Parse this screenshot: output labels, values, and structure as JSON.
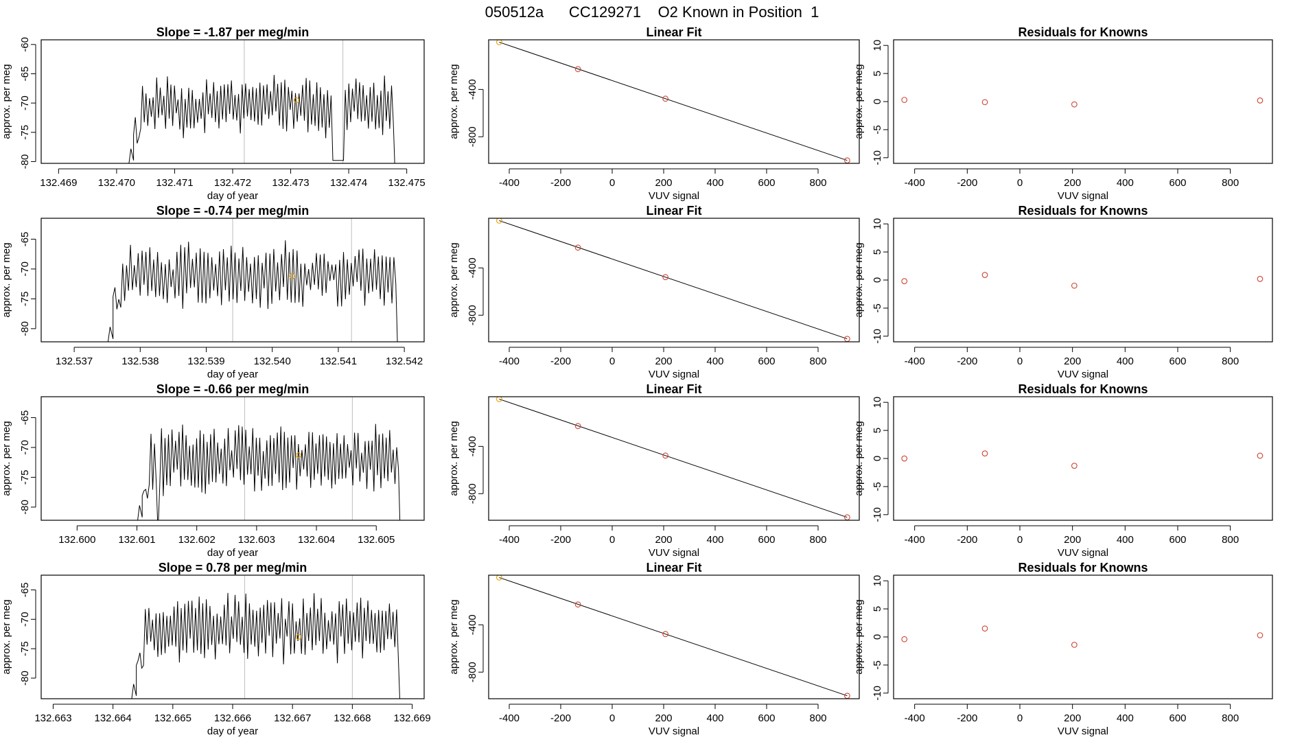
{
  "main_title": "050512a      CC129271    O2 Known in Position  1",
  "chart_data": [
    {
      "type": "line",
      "row": 1,
      "title": "Slope =  -1.87  per meg/min",
      "xlabel": "day of year",
      "ylabel": "approx. per meg",
      "xlim": [
        132.4687,
        132.4753
      ],
      "ylim": [
        -80.3,
        -59.2
      ],
      "xticks": [
        132.469,
        132.47,
        132.471,
        132.472,
        132.473,
        132.474,
        132.475
      ],
      "xtick_labels": [
        "132.469",
        "132.470",
        "132.471",
        "132.472",
        "132.473",
        "132.474",
        "132.475"
      ],
      "yticks": [
        -80,
        -75,
        -70,
        -65,
        -60
      ],
      "ytick_labels": [
        "-80",
        "-75",
        "-70",
        "-65",
        "-60"
      ],
      "start": 132.4702,
      "end": 132.4748,
      "vlines": [
        132.4722,
        132.4739
      ],
      "gap": [
        132.47372,
        132.47392
      ],
      "mean_point": {
        "x": 132.4731,
        "y": -69.5
      },
      "mean_color": "#e69f00",
      "seed": 11,
      "base": -70.5,
      "amp": 3.2,
      "low_dip": 0
    },
    {
      "type": "line",
      "row": 2,
      "title": "Slope =  -0.74  per meg/min",
      "xlabel": "day of year",
      "ylabel": "approx. per meg",
      "xlim": [
        132.5365,
        132.5423
      ],
      "ylim": [
        -82.2,
        -61.5
      ],
      "xticks": [
        132.537,
        132.538,
        132.539,
        132.54,
        132.541,
        132.542
      ],
      "xtick_labels": [
        "132.537",
        "132.538",
        "132.539",
        "132.540",
        "132.541",
        "132.542"
      ],
      "yticks": [
        -80,
        -75,
        -70,
        -65
      ],
      "ytick_labels": [
        "-80",
        "-75",
        "-70",
        "-65"
      ],
      "start": 132.5375,
      "end": 132.5419,
      "vlines": [
        132.5394,
        132.5412
      ],
      "gap": [],
      "mean_point": {
        "x": 132.5403,
        "y": -71.2
      },
      "mean_color": "#e69f00",
      "seed": 23,
      "base": -71,
      "amp": 3.3,
      "low_dip": 0
    },
    {
      "type": "line",
      "row": 3,
      "title": "Slope =  -0.66  per meg/min",
      "xlabel": "day of year",
      "ylabel": "approx. per meg",
      "xlim": [
        132.5994,
        132.6058
      ],
      "ylim": [
        -82.2,
        -61.5
      ],
      "xticks": [
        132.6,
        132.601,
        132.602,
        132.603,
        132.604,
        132.605
      ],
      "xtick_labels": [
        "132.600",
        "132.601",
        "132.602",
        "132.603",
        "132.604",
        "132.605"
      ],
      "yticks": [
        -80,
        -75,
        -70,
        -65
      ],
      "ytick_labels": [
        "-80",
        "-75",
        "-70",
        "-65"
      ],
      "start": 132.601,
      "end": 132.6054,
      "vlines": [
        132.6028,
        132.6046
      ],
      "gap": [],
      "mean_point": {
        "x": 132.6037,
        "y": -71.3
      },
      "mean_color": "#e69f00",
      "seed": 37,
      "base": -72,
      "amp": 3.6,
      "low_dip": 1
    },
    {
      "type": "line",
      "row": 4,
      "title": "Slope =  0.78  per meg/min",
      "xlabel": "day of year",
      "ylabel": "approx. per meg",
      "xlim": [
        132.6628,
        132.6692
      ],
      "ylim": [
        -83.5,
        -62.5
      ],
      "xticks": [
        132.663,
        132.664,
        132.665,
        132.666,
        132.667,
        132.668,
        132.669
      ],
      "xtick_labels": [
        "132.663",
        "132.664",
        "132.665",
        "132.666",
        "132.667",
        "132.668",
        "132.669"
      ],
      "yticks": [
        -80,
        -75,
        -70,
        -65
      ],
      "ytick_labels": [
        "-80",
        "-75",
        "-70",
        "-65"
      ],
      "start": 132.6643,
      "end": 132.6688,
      "vlines": [
        132.6662,
        132.668
      ],
      "gap": [],
      "mean_point": {
        "x": 132.6671,
        "y": -73.0
      },
      "mean_color": "#e69f00",
      "seed": 53,
      "base": -71.5,
      "amp": 3.6,
      "low_dip": 0
    },
    {
      "type": "scatter",
      "row": 1,
      "title": "Linear Fit",
      "xlabel": "VUV signal",
      "ylabel": "approx. per meg",
      "xlim": [
        -480,
        960
      ],
      "ylim": [
        -1025,
        20
      ],
      "xticks": [
        -400,
        -200,
        0,
        200,
        400,
        600,
        800
      ],
      "xtick_labels": [
        "-400",
        "-200",
        "0",
        "200",
        "400",
        "600",
        "800"
      ],
      "yticks": [
        -400,
        -800
      ],
      "ytick_labels": [
        "-400",
        "-800"
      ],
      "points": [
        {
          "x": -439,
          "y": 0
        },
        {
          "x": -133,
          "y": -228
        },
        {
          "x": 207,
          "y": -478
        },
        {
          "x": 913,
          "y": -1000
        }
      ],
      "point_colors": [
        "#e69f00",
        "#cc4433",
        "#cc4433",
        "#cc4433"
      ],
      "fit_line": [
        {
          "x": -439,
          "y": 0
        },
        {
          "x": 913,
          "y": -1000
        }
      ]
    },
    {
      "type": "scatter",
      "row": 2,
      "title": "Linear Fit",
      "xlabel": "VUV signal",
      "ylabel": "approx. per meg",
      "xlim": [
        -480,
        960
      ],
      "ylim": [
        -1025,
        20
      ],
      "xticks": [
        -400,
        -200,
        0,
        200,
        400,
        600,
        800
      ],
      "xtick_labels": [
        "-400",
        "-200",
        "0",
        "200",
        "400",
        "600",
        "800"
      ],
      "yticks": [
        -400,
        -800
      ],
      "ytick_labels": [
        "-400",
        "-800"
      ],
      "points": [
        {
          "x": -439,
          "y": 0
        },
        {
          "x": -133,
          "y": -228
        },
        {
          "x": 207,
          "y": -478
        },
        {
          "x": 913,
          "y": -1000
        }
      ],
      "point_colors": [
        "#e69f00",
        "#cc4433",
        "#cc4433",
        "#cc4433"
      ],
      "fit_line": [
        {
          "x": -439,
          "y": 0
        },
        {
          "x": 913,
          "y": -1000
        }
      ]
    },
    {
      "type": "scatter",
      "row": 3,
      "title": "Linear Fit",
      "xlabel": "VUV signal",
      "ylabel": "approx. per meg",
      "xlim": [
        -480,
        960
      ],
      "ylim": [
        -1025,
        20
      ],
      "xticks": [
        -400,
        -200,
        0,
        200,
        400,
        600,
        800
      ],
      "xtick_labels": [
        "-400",
        "-200",
        "0",
        "200",
        "400",
        "600",
        "800"
      ],
      "yticks": [
        -400,
        -800
      ],
      "ytick_labels": [
        "-400",
        "-800"
      ],
      "points": [
        {
          "x": -439,
          "y": 0
        },
        {
          "x": -133,
          "y": -228
        },
        {
          "x": 207,
          "y": -478
        },
        {
          "x": 913,
          "y": -1000
        }
      ],
      "point_colors": [
        "#e69f00",
        "#cc4433",
        "#cc4433",
        "#cc4433"
      ],
      "fit_line": [
        {
          "x": -439,
          "y": 0
        },
        {
          "x": 913,
          "y": -1000
        }
      ]
    },
    {
      "type": "scatter",
      "row": 4,
      "title": "Linear Fit",
      "xlabel": "VUV signal",
      "ylabel": "approx. per meg",
      "xlim": [
        -480,
        960
      ],
      "ylim": [
        -1025,
        20
      ],
      "xticks": [
        -400,
        -200,
        0,
        200,
        400,
        600,
        800
      ],
      "xtick_labels": [
        "-400",
        "-200",
        "0",
        "200",
        "400",
        "600",
        "800"
      ],
      "yticks": [
        -400,
        -800
      ],
      "ytick_labels": [
        "-400",
        "-800"
      ],
      "points": [
        {
          "x": -439,
          "y": 0
        },
        {
          "x": -133,
          "y": -228
        },
        {
          "x": 207,
          "y": -478
        },
        {
          "x": 913,
          "y": -1000
        }
      ],
      "point_colors": [
        "#e69f00",
        "#cc4433",
        "#cc4433",
        "#cc4433"
      ],
      "fit_line": [
        {
          "x": -439,
          "y": 0
        },
        {
          "x": 913,
          "y": -1000
        }
      ]
    },
    {
      "type": "scatter",
      "row": 1,
      "title": "Residuals for Knowns",
      "xlabel": "VUV signal",
      "ylabel": "approx. per meg",
      "xlim": [
        -480,
        960
      ],
      "ylim": [
        -11,
        11
      ],
      "xticks": [
        -400,
        -200,
        0,
        200,
        400,
        600,
        800
      ],
      "xtick_labels": [
        "-400",
        "-200",
        "0",
        "200",
        "400",
        "600",
        "800"
      ],
      "yticks": [
        -10,
        -5,
        0,
        5,
        10
      ],
      "ytick_labels": [
        "-10",
        "-5",
        "0",
        "5",
        "10"
      ],
      "points": [
        {
          "x": -439,
          "y": 0.3
        },
        {
          "x": -133,
          "y": -0.1
        },
        {
          "x": 207,
          "y": -0.5
        },
        {
          "x": 913,
          "y": 0.2
        }
      ],
      "point_colors": [
        "#cc4433",
        "#cc4433",
        "#cc4433",
        "#cc4433"
      ]
    },
    {
      "type": "scatter",
      "row": 2,
      "title": "Residuals for Knowns",
      "xlabel": "VUV signal",
      "ylabel": "approx. per meg",
      "xlim": [
        -480,
        960
      ],
      "ylim": [
        -11,
        11
      ],
      "xticks": [
        -400,
        -200,
        0,
        200,
        400,
        600,
        800
      ],
      "xtick_labels": [
        "-400",
        "-200",
        "0",
        "200",
        "400",
        "600",
        "800"
      ],
      "yticks": [
        -10,
        -5,
        0,
        5,
        10
      ],
      "ytick_labels": [
        "-10",
        "-5",
        "0",
        "5",
        "10"
      ],
      "points": [
        {
          "x": -439,
          "y": -0.2
        },
        {
          "x": -133,
          "y": 0.9
        },
        {
          "x": 207,
          "y": -1.0
        },
        {
          "x": 913,
          "y": 0.2
        }
      ],
      "point_colors": [
        "#cc4433",
        "#cc4433",
        "#cc4433",
        "#cc4433"
      ]
    },
    {
      "type": "scatter",
      "row": 3,
      "title": "Residuals for Knowns",
      "xlabel": "VUV signal",
      "ylabel": "approx. per meg",
      "xlim": [
        -480,
        960
      ],
      "ylim": [
        -11,
        11
      ],
      "xticks": [
        -400,
        -200,
        0,
        200,
        400,
        600,
        800
      ],
      "xtick_labels": [
        "-400",
        "-200",
        "0",
        "200",
        "400",
        "600",
        "800"
      ],
      "yticks": [
        -10,
        -5,
        0,
        5,
        10
      ],
      "ytick_labels": [
        "-10",
        "-5",
        "0",
        "5",
        "10"
      ],
      "points": [
        {
          "x": -439,
          "y": 0.0
        },
        {
          "x": -133,
          "y": 0.9
        },
        {
          "x": 207,
          "y": -1.3
        },
        {
          "x": 913,
          "y": 0.5
        }
      ],
      "point_colors": [
        "#cc4433",
        "#cc4433",
        "#cc4433",
        "#cc4433"
      ]
    },
    {
      "type": "scatter",
      "row": 4,
      "title": "Residuals for Knowns",
      "xlabel": "VUV signal",
      "ylabel": "approx. per meg",
      "xlim": [
        -480,
        960
      ],
      "ylim": [
        -11,
        11
      ],
      "xticks": [
        -400,
        -200,
        0,
        200,
        400,
        600,
        800
      ],
      "xtick_labels": [
        "-400",
        "-200",
        "0",
        "200",
        "400",
        "600",
        "800"
      ],
      "yticks": [
        -10,
        -5,
        0,
        5,
        10
      ],
      "ytick_labels": [
        "-10",
        "-5",
        "0",
        "5",
        "10"
      ],
      "points": [
        {
          "x": -439,
          "y": -0.4
        },
        {
          "x": -133,
          "y": 1.5
        },
        {
          "x": 207,
          "y": -1.4
        },
        {
          "x": 913,
          "y": 0.3
        }
      ],
      "point_colors": [
        "#cc4433",
        "#cc4433",
        "#cc4433",
        "#cc4433"
      ]
    }
  ]
}
